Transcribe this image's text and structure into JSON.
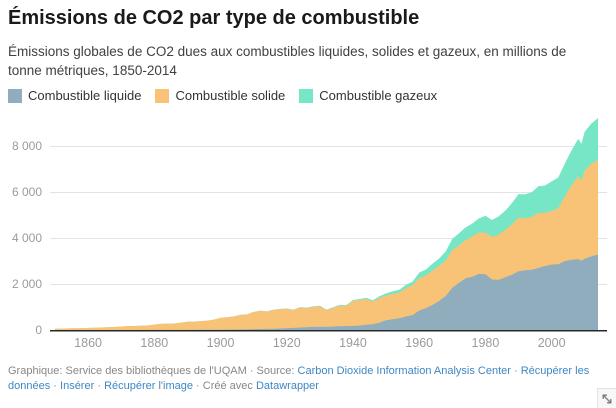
{
  "header": {
    "title": "Émissions de CO2 par type de combustible",
    "subtitle": "Émissions globales de CO2 dues aux combustibles liquides, solides et gazeux, en millions de tonne métriques, 1850-2014"
  },
  "chart_data": {
    "type": "area",
    "stacked": true,
    "title": "Émissions de CO2 par type de combustible",
    "xlabel": "",
    "ylabel": "",
    "xlim": [
      1850,
      2014
    ],
    "ylim": [
      0,
      9400
    ],
    "grid": true,
    "legend_position": "top",
    "x_tick_values": [
      1860,
      1880,
      1900,
      1920,
      1940,
      1960,
      1980,
      2000
    ],
    "x_tick_labels": [
      "1860",
      "1880",
      "1900",
      "1920",
      "1940",
      "1960",
      "1980",
      "2000"
    ],
    "y_tick_values": [
      0,
      2000,
      4000,
      6000,
      8000
    ],
    "y_tick_labels": [
      "0",
      "2 000",
      "4 000",
      "6 000",
      "8 000"
    ],
    "x": [
      1850,
      1852,
      1854,
      1856,
      1858,
      1860,
      1862,
      1864,
      1866,
      1868,
      1870,
      1872,
      1874,
      1876,
      1878,
      1880,
      1882,
      1884,
      1886,
      1888,
      1890,
      1892,
      1894,
      1896,
      1898,
      1900,
      1902,
      1904,
      1906,
      1908,
      1910,
      1912,
      1914,
      1916,
      1918,
      1920,
      1922,
      1924,
      1926,
      1928,
      1930,
      1932,
      1934,
      1936,
      1938,
      1940,
      1942,
      1944,
      1946,
      1948,
      1950,
      1952,
      1954,
      1956,
      1958,
      1960,
      1962,
      1964,
      1966,
      1968,
      1970,
      1972,
      1974,
      1976,
      1978,
      1980,
      1982,
      1984,
      1986,
      1988,
      1990,
      1992,
      1994,
      1996,
      1998,
      2000,
      2002,
      2004,
      2006,
      2008,
      2009,
      2010,
      2012,
      2014
    ],
    "series": [
      {
        "name": "Combustible liquide",
        "color": "#8FADBD",
        "values": [
          0,
          0,
          0,
          0,
          0,
          1,
          1,
          1,
          1,
          1,
          1,
          2,
          2,
          2,
          3,
          3,
          4,
          5,
          5,
          6,
          8,
          9,
          9,
          10,
          13,
          16,
          18,
          21,
          23,
          27,
          37,
          43,
          47,
          55,
          65,
          78,
          92,
          111,
          120,
          135,
          143,
          138,
          150,
          166,
          170,
          181,
          192,
          230,
          250,
          323,
          423,
          468,
          510,
          585,
          645,
          849,
          945,
          1085,
          1260,
          1480,
          1838,
          2050,
          2245,
          2313,
          2440,
          2422,
          2196,
          2180,
          2290,
          2400,
          2553,
          2590,
          2620,
          2700,
          2780,
          2845,
          2860,
          3000,
          3050,
          3089,
          3010,
          3100,
          3200,
          3280
        ]
      },
      {
        "name": "Combustible solide",
        "color": "#F9C377",
        "values": [
          54,
          59,
          69,
          75,
          78,
          90,
          95,
          107,
          117,
          128,
          146,
          170,
          172,
          186,
          192,
          233,
          261,
          272,
          276,
          312,
          348,
          357,
          374,
          396,
          435,
          515,
          531,
          565,
          637,
          646,
          743,
          793,
          755,
          822,
          842,
          839,
          775,
          867,
          833,
          868,
          884,
          725,
          810,
          896,
          877,
          1080,
          1115,
          1125,
          988,
          1070,
          1070,
          1105,
          1115,
          1235,
          1300,
          1410,
          1420,
          1495,
          1515,
          1535,
          1635,
          1622,
          1662,
          1745,
          1800,
          1806,
          1855,
          1960,
          2070,
          2190,
          2331,
          2263,
          2300,
          2390,
          2310,
          2327,
          2430,
          2820,
          3230,
          3590,
          3500,
          3832,
          4015,
          4117
        ]
      },
      {
        "name": "Combustible gazeux",
        "color": "#77E6C6",
        "values": [
          0,
          0,
          0,
          0,
          0,
          0,
          0,
          0,
          0,
          0,
          0,
          0,
          0,
          0,
          0,
          0,
          0,
          1,
          1,
          2,
          2,
          2,
          2,
          3,
          3,
          3,
          4,
          4,
          5,
          5,
          7,
          8,
          8,
          10,
          11,
          15,
          15,
          18,
          21,
          24,
          25,
          23,
          27,
          31,
          34,
          38,
          42,
          50,
          54,
          74,
          97,
          112,
          123,
          142,
          159,
          235,
          262,
          298,
          335,
          396,
          493,
          530,
          557,
          566,
          612,
          740,
          731,
          801,
          829,
          925,
          1026,
          1042,
          1075,
          1160,
          1193,
          1288,
          1343,
          1423,
          1525,
          1630,
          1590,
          1696,
          1760,
          1823
        ]
      }
    ],
    "axis_label_color": "#9b9b9b",
    "gridline_color": "#e3e3e3",
    "baseline_color": "#282828"
  },
  "footer": {
    "sep": "·",
    "graphique_label": "Graphique:",
    "author": "Service des bibliothèques de l'UQAM",
    "source_label": "Source:",
    "source_link": "Carbon Dioxide Information Analysis Center",
    "get_data_link": "Récupérer les données",
    "embed_link": "Insérer",
    "get_image_link": "Récupérer l'image",
    "created_with": "Créé avec",
    "datawrapper_link": "Datawrapper"
  },
  "icons": {
    "resize": "diagonal-resize-arrow"
  }
}
